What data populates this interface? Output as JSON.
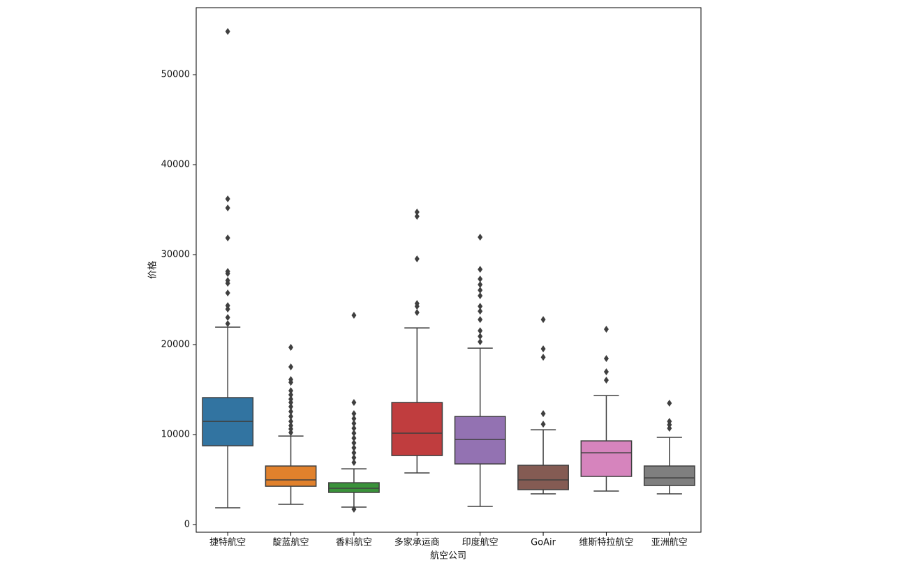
{
  "chart_data": {
    "type": "box",
    "xlabel": "航空公司",
    "ylabel": "价格",
    "categories": [
      "捷特航空",
      "靛蓝航空",
      "香料航空",
      "多家承运商",
      "印度航空",
      "GoAir",
      "维斯特拉航空",
      "亚洲航空"
    ],
    "colors": [
      "#3274a1",
      "#e1812c",
      "#3a923a",
      "#c03d3e",
      "#9372b2",
      "#845b53",
      "#d684bd",
      "#7f7f7f"
    ],
    "boxes": [
      {
        "min": 1860,
        "q1": 8760,
        "median": 11470,
        "q3": 14110,
        "max": 21940,
        "outliers": [
          22330,
          23020,
          23950,
          24340,
          25740,
          26820,
          27130,
          27900,
          28140,
          31860,
          35190,
          36200,
          54806
        ]
      },
      {
        "min": 2250,
        "q1": 4260,
        "median": 4960,
        "q3": 6510,
        "max": 9840,
        "outliers": [
          10230,
          10620,
          11000,
          11470,
          12020,
          12560,
          13100,
          13570,
          13950,
          14420,
          14880,
          15810,
          16120,
          17520,
          19690
        ]
      },
      {
        "min": 1940,
        "q1": 3570,
        "median": 4030,
        "q3": 4650,
        "max": 6200,
        "outliers": [
          1710,
          6900,
          7440,
          7980,
          8530,
          9070,
          9610,
          10160,
          10700,
          11240,
          11780,
          12330,
          13570,
          23260
        ]
      },
      {
        "min": 5740,
        "q1": 7670,
        "median": 10160,
        "q3": 13570,
        "max": 21860,
        "outliers": [
          23570,
          24260,
          24570,
          29530,
          34260,
          34730
        ]
      },
      {
        "min": 2020,
        "q1": 6740,
        "median": 9460,
        "q3": 12020,
        "max": 19610,
        "outliers": [
          20310,
          20930,
          21550,
          22790,
          23720,
          24260,
          25430,
          26050,
          26670,
          27290,
          28370,
          31940
        ]
      },
      {
        "min": 3410,
        "q1": 3880,
        "median": 4960,
        "q3": 6590,
        "max": 10540,
        "outliers": [
          11160,
          12330,
          18600,
          19530,
          22790
        ]
      },
      {
        "min": 3720,
        "q1": 5350,
        "median": 7980,
        "q3": 9300,
        "max": 14340,
        "outliers": [
          16050,
          16980,
          18450,
          21710
        ]
      },
      {
        "min": 3410,
        "q1": 4340,
        "median": 5190,
        "q3": 6510,
        "max": 9690,
        "outliers": [
          10700,
          11090,
          11470,
          13490
        ]
      }
    ],
    "ylim": [
      -850,
      57450
    ],
    "yticks": [
      0,
      10000,
      20000,
      30000,
      40000,
      50000
    ]
  }
}
